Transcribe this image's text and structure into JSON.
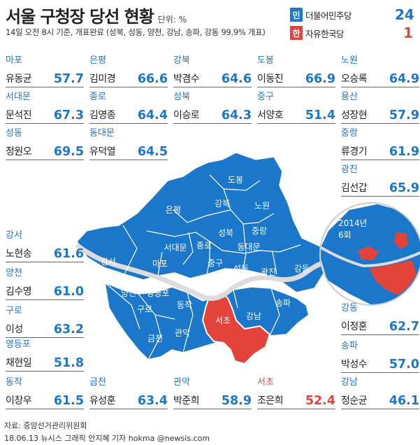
{
  "title": "서울 구청장 당선 현황",
  "unit": "단위: %",
  "subtitle": "14일 오전 8시 기준, 개표완료 (성북, 성동, 양천, 강남, 송파, 강동 99.9% 개표)",
  "legend": [
    {
      "badge": "민",
      "party": "더불어민주당",
      "count": "24",
      "color": "#1a77c9"
    },
    {
      "badge": "한",
      "party": "자유한국당",
      "count": "1",
      "color": "#e2433a"
    }
  ],
  "colors": {
    "democratic": "#1a77c9",
    "liberty_korea": "#e2433a",
    "river": "#dcdcdc",
    "border": "#ffffff"
  },
  "districts": [
    {
      "district": "마포",
      "candidate": "유동균",
      "percent": "57.7",
      "party": "democratic"
    },
    {
      "district": "은평",
      "candidate": "김미경",
      "percent": "66.6",
      "party": "democratic"
    },
    {
      "district": "강북",
      "candidate": "박겸수",
      "percent": "64.6",
      "party": "democratic"
    },
    {
      "district": "도봉",
      "candidate": "이동진",
      "percent": "66.9",
      "party": "democratic"
    },
    {
      "district": "노원",
      "candidate": "오승록",
      "percent": "64.9",
      "party": "democratic"
    },
    {
      "district": "서대문",
      "candidate": "문석진",
      "percent": "67.3",
      "party": "democratic"
    },
    {
      "district": "종로",
      "candidate": "김영종",
      "percent": "64.4",
      "party": "democratic"
    },
    {
      "district": "성북",
      "candidate": "이승로",
      "percent": "64.3",
      "party": "democratic"
    },
    {
      "district": "중구",
      "candidate": "서양호",
      "percent": "51.4",
      "party": "democratic"
    },
    {
      "district": "용산",
      "candidate": "성장현",
      "percent": "57.9",
      "party": "democratic"
    },
    {
      "district": "성동",
      "candidate": "정원오",
      "percent": "69.5",
      "party": "democratic"
    },
    {
      "district": "동대문",
      "candidate": "유덕열",
      "percent": "64.5",
      "party": "democratic"
    },
    {
      "district": "중랑",
      "candidate": "류경기",
      "percent": "61.9",
      "party": "democratic"
    },
    {
      "district": "광진",
      "candidate": "김선갑",
      "percent": "65.9",
      "party": "democratic"
    },
    {
      "district": "강서",
      "candidate": "노현송",
      "percent": "61.6",
      "party": "democratic"
    },
    {
      "district": "양천",
      "candidate": "김수영",
      "percent": "61.0",
      "party": "democratic"
    },
    {
      "district": "구로",
      "candidate": "이성",
      "percent": "63.2",
      "party": "democratic"
    },
    {
      "district": "영등포",
      "candidate": "채현일",
      "percent": "51.8",
      "party": "democratic"
    },
    {
      "district": "강동",
      "candidate": "이정훈",
      "percent": "62.7",
      "party": "democratic"
    },
    {
      "district": "송파",
      "candidate": "박성수",
      "percent": "57.0",
      "party": "democratic"
    },
    {
      "district": "동작",
      "candidate": "이창우",
      "percent": "61.5",
      "party": "democratic"
    },
    {
      "district": "금천",
      "candidate": "유성훈",
      "percent": "63.4",
      "party": "democratic"
    },
    {
      "district": "관악",
      "candidate": "박준희",
      "percent": "58.9",
      "party": "democratic"
    },
    {
      "district": "서초",
      "candidate": "조은희",
      "percent": "52.4",
      "party": "liberty_korea"
    },
    {
      "district": "강남",
      "candidate": "정순균",
      "percent": "46.1",
      "party": "democratic"
    }
  ],
  "map_labels": [
    "도봉",
    "강북",
    "노원",
    "은평",
    "성북",
    "중랑",
    "서대문",
    "종로",
    "동대문",
    "마포",
    "중구",
    "강서",
    "성동",
    "광진",
    "강동",
    "양천",
    "영등포",
    "용산",
    "동작",
    "구로",
    "송파",
    "강남",
    "서초",
    "관악",
    "금천"
  ],
  "inset": {
    "year_label": "2014년",
    "round_label": "6회"
  },
  "source": "자료: 중앙선거관리위원회",
  "credit": "18.06.13 뉴시스 그래픽 안지혜 기자 hokma @newsis.com"
}
